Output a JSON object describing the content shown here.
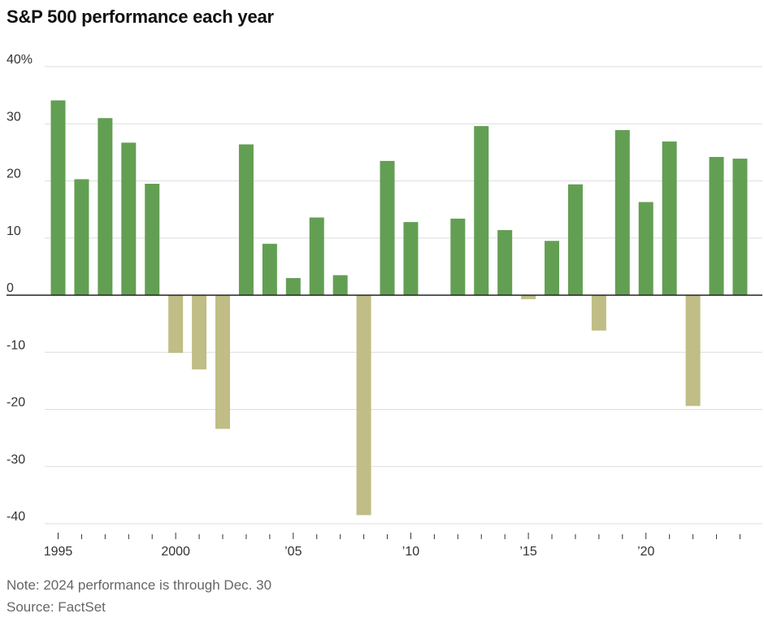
{
  "chart_data": {
    "type": "bar",
    "title": "S&P 500 performance each year",
    "xlabel": "",
    "ylabel": "",
    "ylim": [
      -40,
      40
    ],
    "yticks": [
      {
        "value": 40,
        "label": "40%"
      },
      {
        "value": 30,
        "label": "30"
      },
      {
        "value": 20,
        "label": "20"
      },
      {
        "value": 10,
        "label": "10"
      },
      {
        "value": 0,
        "label": "0"
      },
      {
        "value": -10,
        "label": "-10"
      },
      {
        "value": -20,
        "label": "-20"
      },
      {
        "value": -30,
        "label": "-30"
      },
      {
        "value": -40,
        "label": "-40"
      }
    ],
    "xticks": [
      {
        "year": 1995,
        "label": "1995"
      },
      {
        "year": 2000,
        "label": "2000"
      },
      {
        "year": 2005,
        "label": "’05"
      },
      {
        "year": 2010,
        "label": "’10"
      },
      {
        "year": 2015,
        "label": "’15"
      },
      {
        "year": 2020,
        "label": "’20"
      }
    ],
    "categories": [
      1995,
      1996,
      1997,
      1998,
      1999,
      2000,
      2001,
      2002,
      2003,
      2004,
      2005,
      2006,
      2007,
      2008,
      2009,
      2010,
      2011,
      2012,
      2013,
      2014,
      2015,
      2016,
      2017,
      2018,
      2019,
      2020,
      2021,
      2022,
      2023,
      2024
    ],
    "values": [
      34.1,
      20.3,
      31.0,
      26.7,
      19.5,
      -10.1,
      -13.0,
      -23.4,
      26.4,
      9.0,
      3.0,
      13.6,
      3.5,
      -38.5,
      23.5,
      12.8,
      0.0,
      13.4,
      29.6,
      11.4,
      -0.7,
      9.5,
      19.4,
      -6.2,
      28.9,
      16.3,
      26.9,
      -19.4,
      24.2,
      23.9
    ],
    "grid": true,
    "colors": {
      "positive": "#629f53",
      "negative": "#c0bd86",
      "grid": "#dddddd",
      "axis": "#222222"
    }
  },
  "notes": {
    "note": "Note: 2024 performance is through Dec. 30",
    "source": "Source: FactSet"
  }
}
